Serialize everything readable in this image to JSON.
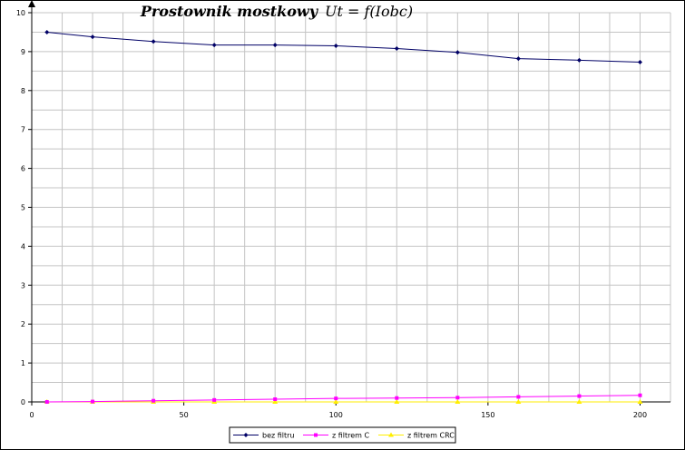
{
  "chart_data": {
    "type": "line",
    "title": "Prostownik mostkowy",
    "subtitle": "Ut = f(Iobc)",
    "xlabel": "",
    "ylabel": "",
    "xlim": [
      0,
      210
    ],
    "ylim": [
      0,
      10
    ],
    "x_ticks": [
      0,
      50,
      100,
      150,
      200
    ],
    "y_ticks": [
      0,
      1,
      2,
      3,
      4,
      5,
      6,
      7,
      8,
      9,
      10
    ],
    "x_minor_step": 10,
    "y_minor_step": 0.5,
    "grid": true,
    "legend_position": "bottom-center",
    "series": [
      {
        "name": "bez filtru",
        "color": "#000066",
        "marker": "diamond",
        "points": [
          [
            5,
            9.5
          ],
          [
            20,
            9.38
          ],
          [
            40,
            9.26
          ],
          [
            60,
            9.17
          ],
          [
            80,
            9.17
          ],
          [
            100,
            9.15
          ],
          [
            120,
            9.08
          ],
          [
            140,
            8.98
          ],
          [
            160,
            8.82
          ],
          [
            180,
            8.78
          ],
          [
            200,
            8.73
          ]
        ]
      },
      {
        "name": "z filtrem C",
        "color": "#ff00ff",
        "marker": "square",
        "points": [
          [
            5,
            0.0
          ],
          [
            20,
            0.01
          ],
          [
            40,
            0.03
          ],
          [
            60,
            0.05
          ],
          [
            80,
            0.07
          ],
          [
            100,
            0.09
          ],
          [
            120,
            0.1
          ],
          [
            140,
            0.11
          ],
          [
            160,
            0.13
          ],
          [
            180,
            0.15
          ],
          [
            200,
            0.17
          ]
        ]
      },
      {
        "name": "z filtrem CRC",
        "color": "#ffee00",
        "marker": "triangle",
        "points": [
          [
            5,
            0.0
          ],
          [
            20,
            0.0
          ],
          [
            40,
            0.0
          ],
          [
            60,
            0.0
          ],
          [
            80,
            0.0
          ],
          [
            100,
            0.0
          ],
          [
            120,
            0.0
          ],
          [
            140,
            0.0
          ],
          [
            160,
            0.0
          ],
          [
            180,
            0.0
          ],
          [
            200,
            0.0
          ]
        ]
      }
    ]
  }
}
